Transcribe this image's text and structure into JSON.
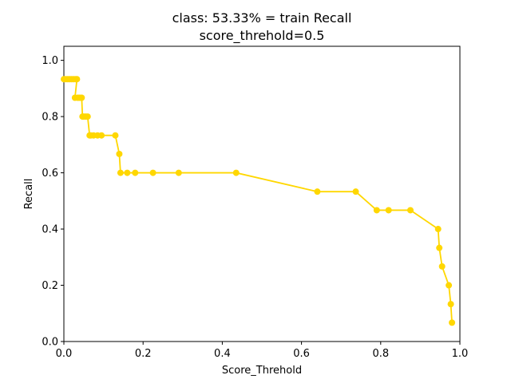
{
  "chart_data": {
    "type": "line",
    "title": "class: 53.33% = train Recall",
    "subtitle": "score_threhold=0.5",
    "xlabel": "Score_Threhold",
    "ylabel": "Recall",
    "xlim": [
      0.0,
      1.0
    ],
    "ylim": [
      0.0,
      1.05
    ],
    "xticks": [
      0.0,
      0.2,
      0.4,
      0.6,
      0.8,
      1.0
    ],
    "yticks": [
      0.0,
      0.2,
      0.4,
      0.6,
      0.8,
      1.0
    ],
    "xtick_labels": [
      "0.0",
      "0.2",
      "0.4",
      "0.6",
      "0.8",
      "1.0"
    ],
    "ytick_labels": [
      "0.0",
      "0.2",
      "0.4",
      "0.6",
      "0.8",
      "1.0"
    ],
    "grid": false,
    "color": "#FFD700",
    "series": [
      {
        "x": [
          0.0,
          0.005,
          0.01,
          0.015,
          0.02,
          0.025,
          0.03,
          0.033,
          0.028,
          0.035,
          0.04,
          0.045,
          0.047,
          0.05,
          0.055,
          0.06,
          0.065,
          0.068,
          0.075,
          0.085,
          0.095,
          0.13,
          0.14,
          0.143,
          0.16,
          0.18,
          0.225,
          0.29,
          0.435,
          0.64,
          0.737,
          0.79,
          0.82,
          0.875,
          0.945,
          0.948,
          0.955,
          0.972,
          0.977,
          0.98
        ],
        "y": [
          0.933,
          0.933,
          0.933,
          0.933,
          0.933,
          0.933,
          0.933,
          0.933,
          0.867,
          0.867,
          0.867,
          0.867,
          0.8,
          0.8,
          0.8,
          0.8,
          0.733,
          0.733,
          0.733,
          0.733,
          0.733,
          0.733,
          0.667,
          0.6,
          0.6,
          0.6,
          0.6,
          0.6,
          0.6,
          0.533,
          0.533,
          0.467,
          0.467,
          0.467,
          0.4,
          0.333,
          0.267,
          0.2,
          0.133,
          0.067
        ]
      }
    ]
  }
}
